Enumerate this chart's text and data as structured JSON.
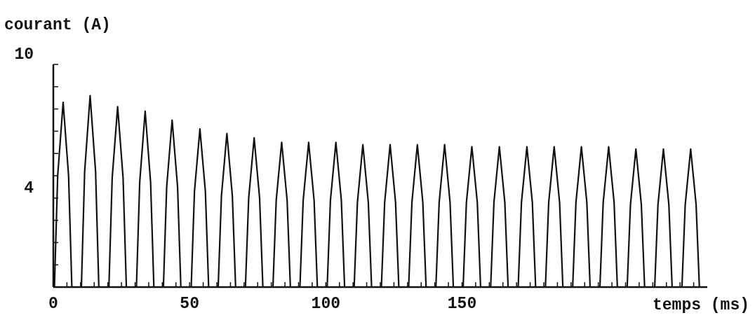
{
  "chart_data": {
    "type": "line",
    "xlabel": "temps (ms)",
    "ylabel": "courant (A)",
    "xlim": [
      0,
      240
    ],
    "ylim": [
      0,
      10
    ],
    "xticks": [
      0,
      {
        "value": 5,
        "label": null
      },
      {
        "value": 10,
        "label": null
      },
      {
        "value": 15,
        "label": null
      },
      {
        "value": 20,
        "label": null
      },
      {
        "value": 25,
        "label": null
      },
      {
        "value": 30,
        "label": null
      },
      {
        "value": 35,
        "label": null
      },
      {
        "value": 40,
        "label": null
      },
      {
        "value": 45,
        "label": null
      },
      50,
      {
        "value": 55,
        "label": null
      },
      {
        "value": 60,
        "label": null
      },
      {
        "value": 65,
        "label": null
      },
      {
        "value": 70,
        "label": null
      },
      {
        "value": 75,
        "label": null
      },
      {
        "value": 80,
        "label": null
      },
      {
        "value": 85,
        "label": null
      },
      {
        "value": 90,
        "label": null
      },
      {
        "value": 95,
        "label": null
      },
      100,
      {
        "value": 105,
        "label": null
      },
      {
        "value": 110,
        "label": null
      },
      {
        "value": 115,
        "label": null
      },
      {
        "value": 120,
        "label": null
      },
      {
        "value": 125,
        "label": null
      },
      {
        "value": 130,
        "label": null
      },
      {
        "value": 135,
        "label": null
      },
      {
        "value": 140,
        "label": null
      },
      {
        "value": 145,
        "label": null
      },
      150,
      {
        "value": 155,
        "label": null
      },
      {
        "value": 160,
        "label": null
      },
      {
        "value": 165,
        "label": null
      },
      {
        "value": 170,
        "label": null
      },
      {
        "value": 175,
        "label": null
      },
      {
        "value": 180,
        "label": null
      },
      {
        "value": 185,
        "label": null
      },
      {
        "value": 190,
        "label": null
      },
      {
        "value": 195,
        "label": null
      },
      {
        "value": 200,
        "label": null
      },
      {
        "value": 205,
        "label": null
      },
      {
        "value": 210,
        "label": null
      },
      {
        "value": 215,
        "label": null
      },
      {
        "value": 220,
        "label": null
      },
      {
        "value": 225,
        "label": null
      },
      {
        "value": 230,
        "label": null
      },
      {
        "value": 235,
        "label": null
      }
    ],
    "yticks": [
      {
        "value": 1,
        "label": null
      },
      {
        "value": 2,
        "label": null
      },
      {
        "value": 3,
        "label": null
      },
      4,
      {
        "value": 5,
        "label": null
      },
      {
        "value": 6,
        "label": null
      },
      {
        "value": 7,
        "label": null
      },
      {
        "value": 8,
        "label": null
      },
      {
        "value": 9,
        "label": null
      },
      10
    ],
    "grid": false,
    "series": [
      {
        "color": "#111111",
        "x": [
          0.4,
          1.6,
          3.6,
          5.6,
          6.8,
          10.3,
          11.5,
          13.5,
          15.5,
          16.7,
          20.4,
          21.6,
          23.6,
          25.6,
          26.8,
          30.5,
          31.7,
          33.7,
          35.7,
          36.9,
          40.4,
          41.6,
          43.6,
          45.6,
          46.8,
          50.6,
          51.8,
          53.8,
          55.8,
          57.0,
          60.5,
          61.7,
          63.7,
          65.7,
          66.9,
          70.5,
          71.7,
          73.7,
          75.7,
          76.9,
          80.6,
          81.8,
          83.8,
          85.8,
          87.0,
          90.5,
          91.7,
          93.7,
          95.7,
          96.9,
          100.5,
          101.7,
          103.7,
          105.7,
          106.9,
          110.4,
          111.6,
          113.6,
          115.6,
          116.8,
          120.4,
          121.6,
          123.6,
          125.6,
          126.8,
          130.4,
          131.6,
          133.6,
          135.6,
          136.8,
          140.4,
          141.6,
          143.6,
          145.6,
          146.8,
          150.4,
          151.6,
          153.6,
          155.6,
          156.8,
          160.5,
          161.7,
          163.7,
          165.7,
          166.9,
          170.6,
          171.8,
          173.8,
          175.8,
          177.0,
          180.6,
          181.8,
          183.8,
          185.8,
          187.0,
          190.6,
          191.8,
          193.8,
          195.8,
          197.0,
          200.6,
          201.8,
          203.8,
          205.8,
          207.0,
          210.6,
          211.8,
          213.8,
          215.8,
          217.0,
          220.7,
          221.9,
          223.9,
          225.9,
          227.1,
          230.7,
          231.9,
          233.9,
          235.9,
          237.1
        ],
        "values": [
          0,
          5.0,
          8.3,
          5.0,
          0,
          0,
          5.2,
          8.6,
          5.2,
          0,
          0,
          4.9,
          8.1,
          4.9,
          0,
          0,
          4.7,
          7.9,
          4.7,
          0,
          0,
          4.5,
          7.5,
          4.5,
          0,
          0,
          4.3,
          7.1,
          4.3,
          0,
          0,
          4.1,
          6.9,
          4.1,
          0,
          0,
          4.0,
          6.7,
          4.0,
          0,
          0,
          3.9,
          6.5,
          3.9,
          0,
          0,
          3.9,
          6.5,
          3.9,
          0,
          0,
          3.9,
          6.5,
          3.9,
          0,
          0,
          3.8,
          6.4,
          3.8,
          0,
          0,
          3.8,
          6.4,
          3.8,
          0,
          0,
          3.8,
          6.4,
          3.8,
          0,
          0,
          3.8,
          6.4,
          3.8,
          0,
          0,
          3.8,
          6.3,
          3.8,
          0,
          0,
          3.8,
          6.3,
          3.8,
          0,
          0,
          3.8,
          6.3,
          3.8,
          0,
          0,
          3.8,
          6.3,
          3.8,
          0,
          0,
          3.8,
          6.3,
          3.8,
          0,
          0,
          3.8,
          6.3,
          3.8,
          0,
          0,
          3.7,
          6.2,
          3.7,
          0,
          0,
          3.7,
          6.2,
          3.7,
          0,
          0,
          3.7,
          6.2,
          3.7,
          0
        ]
      }
    ]
  }
}
